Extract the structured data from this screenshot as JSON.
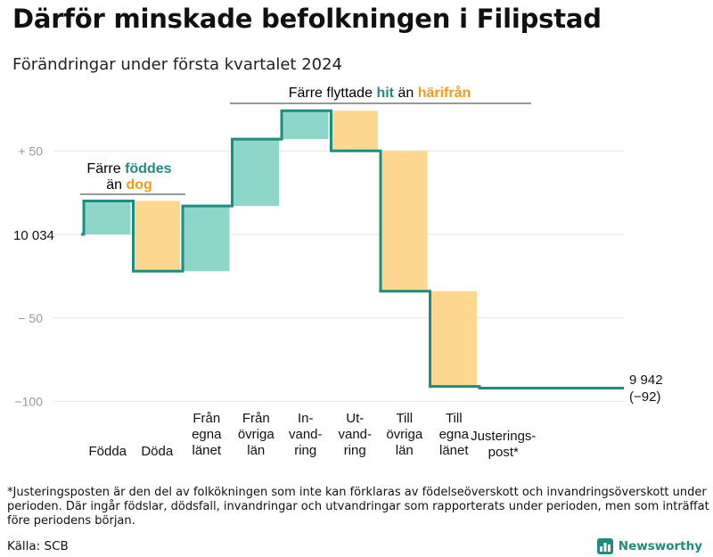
{
  "title": "Därför minskade befolkningen i Filipstad",
  "subtitle": "Förändringar under första kvartalet 2024",
  "footnote": "*Justeringsposten är den del av folkökningen som inte kan förklaras av födelseöverskott och invandringsöverskott under perioden. Där ingår födslar, dödsfall, invandringar och utvandringar som rapporterats under perioden, men som inträffat före periodens början.",
  "source": "Källa: SCB",
  "logo_text": "Newsworthy",
  "colors": {
    "line": "#1e8c7e",
    "positive": "#8dd6c9",
    "negative": "#fdd78f",
    "teal_text": "#1e8c7e",
    "orange_text": "#f29b1a",
    "axis": "#999999",
    "grid": "#e6e6e6"
  },
  "annotations": {
    "birth": {
      "line1": "Färre",
      "word1": "föddes",
      "line2": "än",
      "word2": "dog"
    },
    "migration": {
      "prefix": "Färre flyttade",
      "word1": "hit",
      "middle": "än",
      "word2": "härifrån"
    }
  },
  "chart_data": {
    "type": "waterfall",
    "start_value": 10034,
    "start_label": "10  034",
    "end_value": 9942,
    "end_label_line1": "9 942",
    "end_label_line2": "(−92)",
    "yticks": [
      {
        "value": 50,
        "label": "+  50"
      },
      {
        "value": -50,
        "label": "−  50"
      },
      {
        "value": -100,
        "label": "−100"
      }
    ],
    "ylim": [
      -100,
      75
    ],
    "steps": [
      {
        "category": "Födda",
        "label_lines": [
          "Födda"
        ],
        "change": 20,
        "kind": "positive"
      },
      {
        "category": "Döda",
        "label_lines": [
          "Döda"
        ],
        "change": -42,
        "kind": "negative"
      },
      {
        "category": "Från egna länet",
        "label_lines": [
          "Från",
          "egna",
          "länet"
        ],
        "change": 39,
        "kind": "positive"
      },
      {
        "category": "Från övriga län",
        "label_lines": [
          "Från",
          "övriga",
          "län"
        ],
        "change": 40,
        "kind": "positive"
      },
      {
        "category": "Invandring",
        "label_lines": [
          "In-",
          "vand-",
          "ring"
        ],
        "change": 17,
        "kind": "positive"
      },
      {
        "category": "Utvandring",
        "label_lines": [
          "Ut-",
          "vand-",
          "ring"
        ],
        "change": -24,
        "kind": "negative"
      },
      {
        "category": "Till övriga län",
        "label_lines": [
          "Till",
          "övriga",
          "län"
        ],
        "change": -84,
        "kind": "negative"
      },
      {
        "category": "Till egna länet",
        "label_lines": [
          "Till",
          "egna",
          "länet"
        ],
        "change": -57,
        "kind": "negative"
      },
      {
        "category": "Justeringspost*",
        "label_lines": [
          "Justerings-",
          "post*"
        ],
        "change": -1,
        "kind": "line"
      }
    ]
  }
}
